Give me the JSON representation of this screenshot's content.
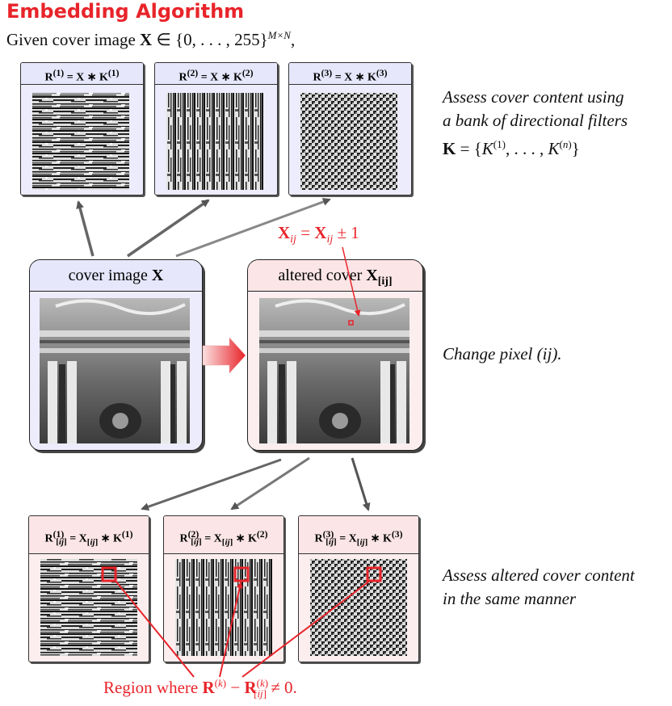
{
  "title": "Embedding Algorithm",
  "intro": "Given cover image X ∈ {0, . . . , 255}^(M×N),",
  "filters_top": [
    {
      "label": "R(1) = X ∗ K(1)"
    },
    {
      "label": "R(2) = X ∗ K(2)"
    },
    {
      "label": "R(3) = X ∗ K(3)"
    }
  ],
  "side_assess": [
    "Assess cover content using",
    "a bank of directional filters",
    "K = {K(1), . . . , K(n)}"
  ],
  "cover_label": "cover image X",
  "altered_label": "altered cover X[ij]",
  "pixel_change": "Xij = Xij ± 1",
  "side_change": "Change pixel (ij).",
  "filters_bottom": [
    {
      "label": "R(1)[ij] = X[ij] ∗ K(1)"
    },
    {
      "label": "R(2)[ij] = X[ij] ∗ K(2)"
    },
    {
      "label": "R(3)[ij] = X[ij] ∗ K(3)"
    }
  ],
  "side_assess_altered": [
    "Assess altered cover content",
    "in the same manner"
  ],
  "region_label": "Region where R(k) − R(k)[ij] ≠ 0.",
  "colors": {
    "accent": "#e8242a",
    "blue_panel": "#ececfc",
    "pink_panel": "#fceeef"
  }
}
